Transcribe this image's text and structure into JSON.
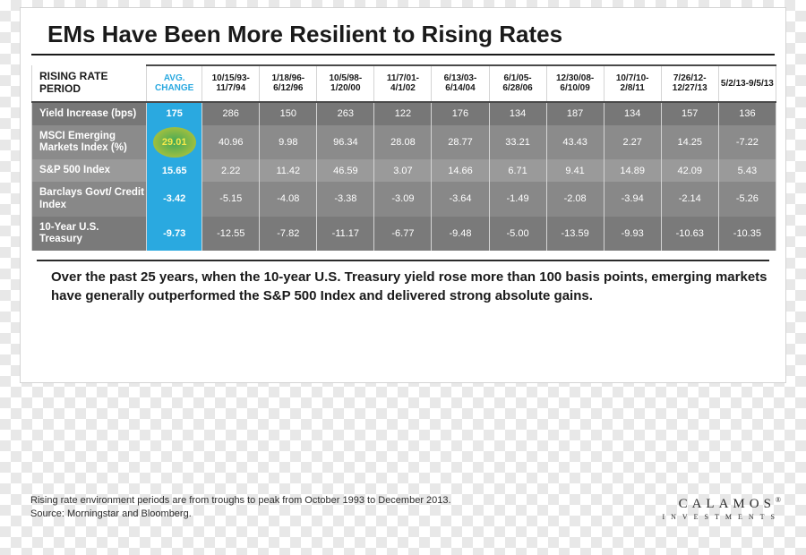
{
  "title": "EMs Have Been More Resilient to Rising Rates",
  "table": {
    "corner": "RISING RATE PERIOD",
    "avg_label": "AVG. CHANGE",
    "periods": [
      "10/15/93-11/7/94",
      "1/18/96-6/12/96",
      "10/5/98-1/20/00",
      "11/7/01-4/1/02",
      "6/13/03-6/14/04",
      "6/1/05-6/28/06",
      "12/30/08-6/10/09",
      "10/7/10-2/8/11",
      "7/26/12-12/27/13",
      "5/2/13-9/5/13"
    ],
    "rows": [
      {
        "label": "Yield Increase (bps)",
        "avg": "175",
        "cells": [
          "286",
          "150",
          "263",
          "122",
          "176",
          "134",
          "187",
          "134",
          "157",
          "136"
        ]
      },
      {
        "label": "MSCI Emerging Markets Index (%)",
        "avg": "29.01",
        "highlight": true,
        "cells": [
          "40.96",
          "9.98",
          "96.34",
          "28.08",
          "28.77",
          "33.21",
          "43.43",
          "2.27",
          "14.25",
          "-7.22"
        ]
      },
      {
        "label": "S&P 500 Index",
        "avg": "15.65",
        "cells": [
          "2.22",
          "11.42",
          "46.59",
          "3.07",
          "14.66",
          "6.71",
          "9.41",
          "14.89",
          "42.09",
          "5.43"
        ]
      },
      {
        "label": "Barclays Govt/ Credit Index",
        "avg": "-3.42",
        "cells": [
          "-5.15",
          "-4.08",
          "-3.38",
          "-3.09",
          "-3.64",
          "-1.49",
          "-2.08",
          "-3.94",
          "-2.14",
          "-5.26"
        ]
      },
      {
        "label": "10-Year U.S. Treasury",
        "avg": "-9.73",
        "cells": [
          "-12.55",
          "-7.82",
          "-11.17",
          "-6.77",
          "-9.48",
          "-5.00",
          "-13.59",
          "-9.93",
          "-10.63",
          "-10.35"
        ]
      }
    ]
  },
  "caption": "Over the past 25 years, when the 10-year U.S. Treasury yield rose more than 100 basis points, emerging markets have generally outperformed the S&P 500 Index and delivered strong absolute gains.",
  "footnote1": "Rising rate environment periods are from troughs to peak from October 1993 to December 2013.",
  "footnote2": "Source: Morningstar and Bloomberg.",
  "brand": {
    "name": "CALAMOS",
    "sub": "INVESTMENTS"
  },
  "colors": {
    "accent": "#2aa9e0",
    "highlight_text": "#f6e94a",
    "row_grays": [
      "#777777",
      "#8b8b8b",
      "#9a9a9a",
      "#888888",
      "#7a7a7a"
    ]
  }
}
